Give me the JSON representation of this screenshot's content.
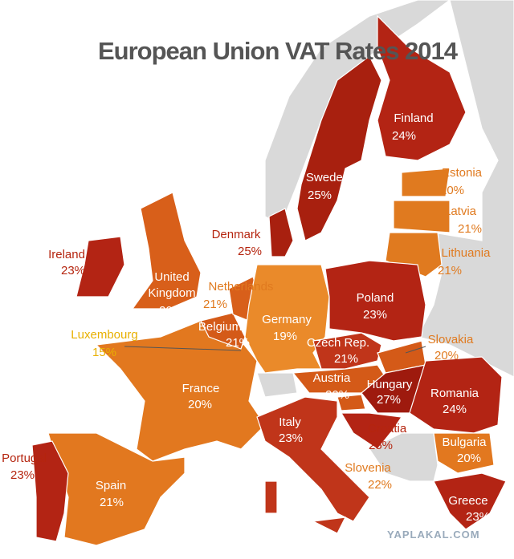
{
  "title": "European Union VAT Rates 2014",
  "countries": [
    {
      "name": "Finland",
      "rate": "24%"
    },
    {
      "name": "Sweden",
      "rate": "25%"
    },
    {
      "name": "Estonia",
      "rate": "20%"
    },
    {
      "name": "Latvia",
      "rate": "21%"
    },
    {
      "name": "Lithuania",
      "rate": "21%"
    },
    {
      "name": "Denmark",
      "rate": "25%"
    },
    {
      "name": "Ireland",
      "rate": "23%"
    },
    {
      "name": "United Kingdom",
      "rate": "20%"
    },
    {
      "name": "Netherlands",
      "rate": "21%"
    },
    {
      "name": "Luxembourg",
      "rate": "15%"
    },
    {
      "name": "Belgium",
      "rate": "21%"
    },
    {
      "name": "Germany",
      "rate": "19%"
    },
    {
      "name": "Poland",
      "rate": "23%"
    },
    {
      "name": "Czech Rep.",
      "rate": "21%"
    },
    {
      "name": "Slovakia",
      "rate": "20%"
    },
    {
      "name": "Austria",
      "rate": "20%"
    },
    {
      "name": "Hungary",
      "rate": "27%"
    },
    {
      "name": "Romania",
      "rate": "24%"
    },
    {
      "name": "France",
      "rate": "20%"
    },
    {
      "name": "Italy",
      "rate": "23%"
    },
    {
      "name": "Croatia",
      "rate": "25%"
    },
    {
      "name": "Bulgaria",
      "rate": "20%"
    },
    {
      "name": "Slovenia",
      "rate": "22%"
    },
    {
      "name": "Portugal",
      "rate": "23%"
    },
    {
      "name": "Spain",
      "rate": "21%"
    },
    {
      "name": "Greece",
      "rate": "23%"
    }
  ],
  "watermark": "YAPLAKAL.COM"
}
